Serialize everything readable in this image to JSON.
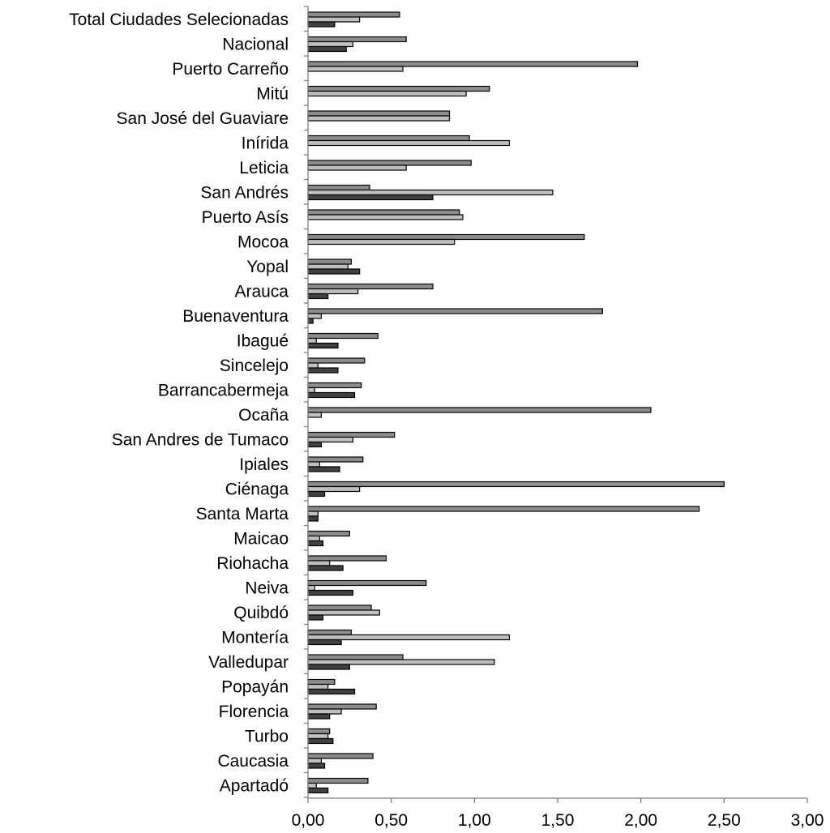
{
  "chart_data": {
    "type": "bar",
    "orientation": "horizontal",
    "title": "",
    "xlabel": "",
    "ylabel": "",
    "xlim": [
      0,
      3
    ],
    "x_ticks": [
      "0,00",
      "0,50",
      "1,00",
      "1,50",
      "2,00",
      "2,50",
      "3,00"
    ],
    "x_tick_values": [
      0,
      0.5,
      1,
      1.5,
      2,
      2.5,
      3
    ],
    "grid": false,
    "legend": "none",
    "categories": [
      "Total Ciudades Selecionadas",
      "Nacional",
      "Puerto Carreño",
      "Mitú",
      "San José del Guaviare",
      "Inírida",
      "Leticia",
      "San Andrés",
      "Puerto Asís",
      "Mocoa",
      "Yopal",
      "Arauca",
      "Buenaventura",
      "Ibagué",
      "Sincelejo",
      "Barrancabermeja",
      "Ocaña",
      "San Andres de Tumaco",
      "Ipiales",
      "Ciénaga",
      "Santa Marta",
      "Maicao",
      "Riohacha",
      "Neiva",
      "Quibdó",
      "Montería",
      "Valledupar",
      "Popayán",
      "Florencia",
      "Turbo",
      "Caucasia",
      "Apartadó"
    ],
    "series": [
      {
        "color": "#8c8c8c",
        "values": [
          0.55,
          0.59,
          1.98,
          1.09,
          0.85,
          0.97,
          0.98,
          0.37,
          0.91,
          1.66,
          0.26,
          0.75,
          1.77,
          0.42,
          0.34,
          0.32,
          2.06,
          0.52,
          0.33,
          2.5,
          2.35,
          0.25,
          0.47,
          0.71,
          0.38,
          0.26,
          0.57,
          0.16,
          0.41,
          0.13,
          0.39,
          0.36
        ]
      },
      {
        "color": "#bfbfbf",
        "values": [
          0.31,
          0.27,
          0.57,
          0.95,
          0.85,
          1.21,
          0.59,
          1.47,
          0.93,
          0.88,
          0.24,
          0.3,
          0.08,
          0.05,
          0.06,
          0.04,
          0.08,
          0.27,
          0.07,
          0.31,
          0.06,
          0.07,
          0.13,
          0.04,
          0.43,
          1.21,
          1.12,
          0.12,
          0.2,
          0.12,
          0.08,
          0.05
        ]
      },
      {
        "color": "#404040",
        "values": [
          0.16,
          0.23,
          null,
          null,
          null,
          null,
          null,
          0.75,
          null,
          null,
          0.31,
          0.12,
          0.03,
          0.18,
          0.18,
          0.28,
          null,
          0.08,
          0.19,
          0.1,
          0.06,
          0.09,
          0.21,
          0.27,
          0.09,
          0.2,
          0.25,
          0.28,
          0.13,
          0.15,
          0.1,
          0.12
        ]
      }
    ]
  }
}
